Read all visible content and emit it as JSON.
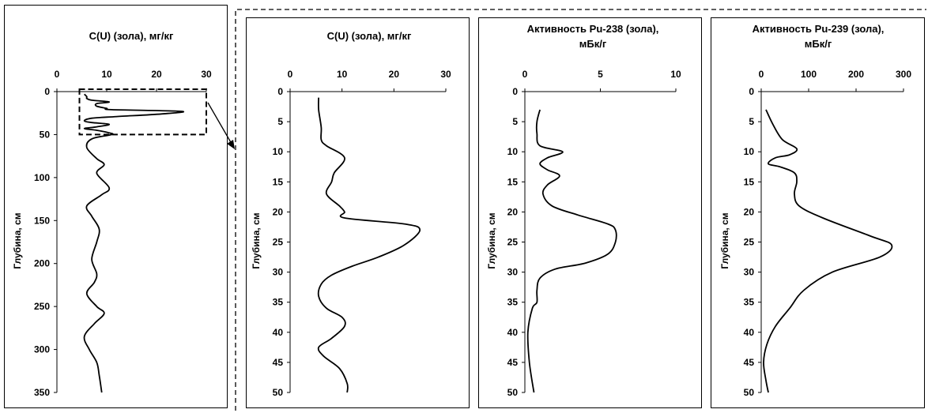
{
  "chart_data": [
    {
      "type": "line",
      "title": "C(U) (зола), мг/кг",
      "xlabel": "C(U) (зола), мг/кг",
      "ylabel": "Глубина, см",
      "xlim": [
        0,
        30
      ],
      "ylim": [
        0,
        350
      ],
      "y_inverted": true,
      "x_axis_position": "top",
      "x_ticks": [
        0,
        10,
        20,
        30
      ],
      "y_ticks": [
        0,
        50,
        100,
        150,
        200,
        250,
        300,
        350
      ],
      "highlight_box": {
        "x": [
          5,
          30
        ],
        "y": [
          0,
          50
        ],
        "style": "dashed",
        "note": "zoomed in second panel"
      },
      "series": [
        {
          "points": [
            [
              5.5,
              3
            ],
            [
              6,
              6
            ],
            [
              6,
              8
            ],
            [
              7,
              10
            ],
            [
              10.5,
              12
            ],
            [
              8,
              14
            ],
            [
              8,
              17
            ],
            [
              10,
              19.5
            ],
            [
              11,
              21
            ],
            [
              25,
              23
            ],
            [
              21,
              26
            ],
            [
              12,
              29
            ],
            [
              7,
              31
            ],
            [
              5.5,
              34
            ],
            [
              7,
              36
            ],
            [
              10.5,
              38
            ],
            [
              8,
              41
            ],
            [
              5.5,
              43
            ],
            [
              8,
              45
            ],
            [
              10.5,
              48
            ],
            [
              11,
              50
            ],
            [
              7,
              55
            ],
            [
              6,
              65
            ],
            [
              8,
              78
            ],
            [
              9.5,
              85
            ],
            [
              8,
              95
            ],
            [
              10.5,
              112
            ],
            [
              9,
              120
            ],
            [
              6,
              133
            ],
            [
              7,
              145
            ],
            [
              8.5,
              160
            ],
            [
              8,
              175
            ],
            [
              7,
              195
            ],
            [
              8,
              212
            ],
            [
              7.5,
              222
            ],
            [
              6,
              235
            ],
            [
              8,
              250
            ],
            [
              9.5,
              258
            ],
            [
              7.5,
              270
            ],
            [
              5.5,
              285
            ],
            [
              6.5,
              300
            ],
            [
              8,
              315
            ],
            [
              8.5,
              330
            ],
            [
              9,
              350
            ]
          ]
        }
      ]
    },
    {
      "type": "line",
      "title": "C(U) (зола), мг/кг",
      "xlabel": "C(U) (зола), мг/кг",
      "ylabel": "Глубина, см",
      "xlim": [
        0,
        30
      ],
      "ylim": [
        0,
        50
      ],
      "y_inverted": true,
      "x_axis_position": "top",
      "x_ticks": [
        0,
        10,
        20,
        30
      ],
      "y_ticks": [
        0,
        5,
        10,
        15,
        20,
        25,
        30,
        35,
        40,
        45,
        50
      ],
      "series": [
        {
          "points": [
            [
              5.5,
              1
            ],
            [
              5.5,
              3
            ],
            [
              6,
              6
            ],
            [
              6,
              8
            ],
            [
              7,
              9
            ],
            [
              10.5,
              11
            ],
            [
              8.5,
              13.5
            ],
            [
              8,
              15
            ],
            [
              7,
              17
            ],
            [
              9.5,
              19
            ],
            [
              10.5,
              20
            ],
            [
              10.5,
              21
            ],
            [
              22,
              22
            ],
            [
              25,
              23
            ],
            [
              22,
              25.5
            ],
            [
              17,
              27.5
            ],
            [
              12,
              29
            ],
            [
              8,
              30.5
            ],
            [
              6,
              32
            ],
            [
              5.5,
              34
            ],
            [
              7,
              36
            ],
            [
              10,
              37.5
            ],
            [
              10.5,
              39
            ],
            [
              8,
              41
            ],
            [
              5.5,
              42.5
            ],
            [
              6.5,
              44
            ],
            [
              9.5,
              46
            ],
            [
              11,
              48.5
            ],
            [
              11,
              50
            ]
          ]
        }
      ]
    },
    {
      "type": "line",
      "title": "Активность Pu-238 (зола), мБк/г",
      "title_lines": [
        "Активность Pu-238 (зола),",
        "мБк/г"
      ],
      "xlabel": "Активность Pu-238 (зола), мБк/г",
      "ylabel": "Глубина, см",
      "xlim": [
        0,
        10
      ],
      "ylim": [
        0,
        50
      ],
      "y_inverted": true,
      "x_axis_position": "top",
      "x_ticks": [
        0,
        5,
        10
      ],
      "y_ticks": [
        0,
        5,
        10,
        15,
        20,
        25,
        30,
        35,
        40,
        45,
        50
      ],
      "series": [
        {
          "points": [
            [
              1,
              3
            ],
            [
              0.8,
              5
            ],
            [
              0.8,
              7
            ],
            [
              1,
              9
            ],
            [
              2.5,
              10
            ],
            [
              1.5,
              11
            ],
            [
              1,
              12
            ],
            [
              1.5,
              13
            ],
            [
              2.3,
              14
            ],
            [
              1.5,
              15.5
            ],
            [
              1.2,
              17
            ],
            [
              1.8,
              19
            ],
            [
              3.5,
              20.5
            ],
            [
              5.5,
              22
            ],
            [
              6,
              23
            ],
            [
              6,
              25
            ],
            [
              5.5,
              27
            ],
            [
              4,
              28.5
            ],
            [
              2,
              29.5
            ],
            [
              1,
              31
            ],
            [
              0.8,
              33
            ],
            [
              0.8,
              35
            ],
            [
              0.5,
              36
            ],
            [
              0.2,
              40
            ],
            [
              0.3,
              45
            ],
            [
              0.6,
              50
            ]
          ]
        }
      ]
    },
    {
      "type": "line",
      "title": "Активность Pu-239 (зола), мБк/г",
      "title_lines": [
        "Активность Pu-239 (зола),",
        "мБк/г"
      ],
      "xlabel": "Активность Pu-239 (зола), мБк/г",
      "ylabel": "Глубина, см",
      "xlim": [
        0,
        300
      ],
      "ylim": [
        0,
        50
      ],
      "y_inverted": true,
      "x_axis_position": "top",
      "x_ticks": [
        0,
        100,
        200,
        300
      ],
      "y_ticks": [
        0,
        5,
        10,
        15,
        20,
        25,
        30,
        35,
        40,
        45,
        50
      ],
      "series": [
        {
          "points": [
            [
              10,
              3
            ],
            [
              25,
              5.5
            ],
            [
              45,
              8
            ],
            [
              75,
              9.5
            ],
            [
              60,
              10.5
            ],
            [
              30,
              11
            ],
            [
              15,
              12
            ],
            [
              40,
              12.5
            ],
            [
              70,
              13.5
            ],
            [
              75,
              15
            ],
            [
              70,
              17
            ],
            [
              80,
              19
            ],
            [
              130,
              21
            ],
            [
              230,
              24
            ],
            [
              275,
              25.5
            ],
            [
              250,
              27.5
            ],
            [
              150,
              30
            ],
            [
              90,
              33
            ],
            [
              60,
              36
            ],
            [
              30,
              39
            ],
            [
              12,
              42
            ],
            [
              5,
              45
            ],
            [
              10,
              48
            ],
            [
              15,
              50
            ]
          ]
        }
      ]
    }
  ]
}
